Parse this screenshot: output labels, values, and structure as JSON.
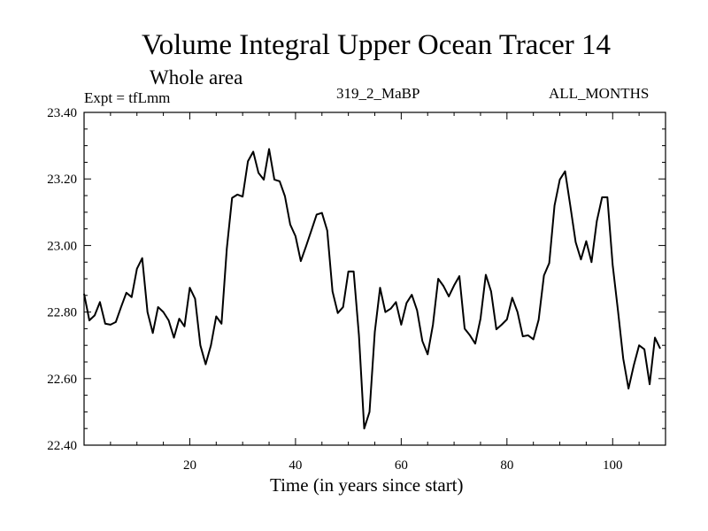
{
  "chart_data": {
    "type": "line",
    "title": "Volume Integral Upper Ocean Tracer 14",
    "subtitle": "Whole area",
    "expt_label": "Expt = tfLmm",
    "run_label": "319_2_MaBP",
    "period_label": "ALL_MONTHS",
    "xlabel": "Time (in years since start)",
    "ylabel": "",
    "xlim": [
      0,
      110
    ],
    "ylim": [
      22.4,
      23.4
    ],
    "x_ticks": [
      20,
      40,
      60,
      80,
      100
    ],
    "x_tick_labels": [
      "20",
      "40",
      "60",
      "80",
      "100"
    ],
    "y_ticks": [
      22.4,
      22.6,
      22.8,
      23.0,
      23.2,
      23.4
    ],
    "y_tick_labels": [
      "22.40",
      "22.60",
      "22.80",
      "23.00",
      "23.20",
      "23.40"
    ],
    "series": [
      {
        "name": "Tracer 14",
        "x_start": 0,
        "x_step": 1,
        "values": [
          22.855,
          22.775,
          22.79,
          22.83,
          22.765,
          22.762,
          22.77,
          22.815,
          22.858,
          22.845,
          22.93,
          22.962,
          22.8,
          22.737,
          22.815,
          22.8,
          22.775,
          22.723,
          22.78,
          22.757,
          22.873,
          22.84,
          22.7,
          22.643,
          22.7,
          22.787,
          22.765,
          22.99,
          23.143,
          23.153,
          23.147,
          23.253,
          23.282,
          23.218,
          23.198,
          23.29,
          23.198,
          23.193,
          23.148,
          23.063,
          23.028,
          22.953,
          22.998,
          23.045,
          23.093,
          23.098,
          23.045,
          22.862,
          22.797,
          22.815,
          22.922,
          22.922,
          22.73,
          22.45,
          22.5,
          22.74,
          22.873,
          22.8,
          22.81,
          22.83,
          22.762,
          22.827,
          22.852,
          22.805,
          22.713,
          22.673,
          22.762,
          22.9,
          22.878,
          22.847,
          22.88,
          22.908,
          22.75,
          22.73,
          22.705,
          22.78,
          22.912,
          22.862,
          22.748,
          22.762,
          22.778,
          22.843,
          22.8,
          22.727,
          22.73,
          22.718,
          22.777,
          22.91,
          22.947,
          23.12,
          23.198,
          23.223,
          23.118,
          23.01,
          22.958,
          23.013,
          22.95,
          23.073,
          23.145,
          23.145,
          22.942,
          22.805,
          22.66,
          22.57,
          22.64,
          22.7,
          22.688,
          22.583,
          22.723,
          22.69
        ]
      }
    ]
  }
}
